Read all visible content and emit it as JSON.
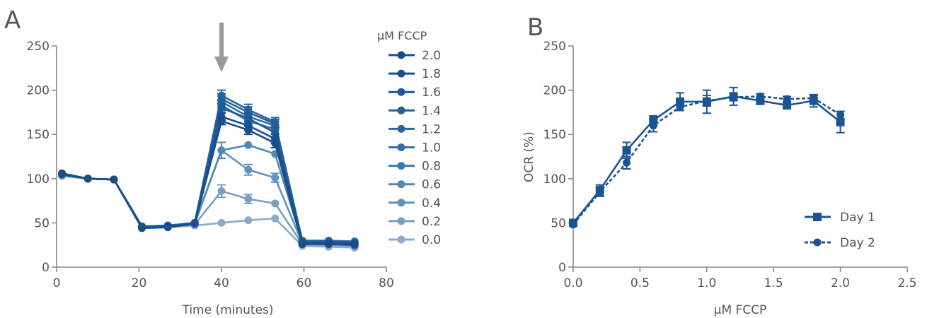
{
  "chart_data": [
    {
      "panel": "A",
      "type": "line",
      "xlabel": "Time (minutes)",
      "ylabel": "",
      "xlim": [
        0,
        80
      ],
      "ylim": [
        0,
        250
      ],
      "xticks": [
        0,
        20,
        40,
        60,
        80
      ],
      "yticks": [
        0,
        50,
        100,
        150,
        200,
        250
      ],
      "grid": false,
      "legend": {
        "title": "μM FCCP",
        "placement": "top-right"
      },
      "annotation": {
        "type": "arrow",
        "x": 40,
        "meaning": "FCCP injection"
      },
      "x": [
        1.3,
        7.6,
        13.9,
        20.7,
        27.0,
        33.5,
        40.0,
        46.5,
        53.0,
        59.6,
        66.0,
        72.3
      ],
      "series": [
        {
          "name": "2.0",
          "color": "#1a4d8a",
          "values": [
            106,
            100,
            99,
            44,
            45,
            49,
            165,
            155,
            140,
            26,
            26,
            25
          ],
          "errors": [
            0,
            0,
            0,
            0,
            0,
            0,
            4,
            5,
            5,
            0,
            0,
            0
          ]
        },
        {
          "name": "1.8",
          "color": "#1b5090",
          "values": [
            105,
            100,
            99,
            45,
            46,
            49,
            170,
            160,
            145,
            27,
            27,
            26
          ],
          "errors": [
            0,
            0,
            0,
            0,
            0,
            0,
            4,
            5,
            5,
            0,
            0,
            0
          ]
        },
        {
          "name": "1.6",
          "color": "#1e5896",
          "values": [
            105,
            100,
            99,
            45,
            46,
            50,
            180,
            168,
            152,
            28,
            28,
            27
          ],
          "errors": [
            0,
            0,
            0,
            0,
            0,
            0,
            5,
            6,
            6,
            0,
            0,
            0
          ]
        },
        {
          "name": "1.4",
          "color": "#24609c",
          "values": [
            105,
            100,
            99,
            46,
            47,
            50,
            190,
            175,
            162,
            29,
            29,
            28
          ],
          "errors": [
            0,
            0,
            0,
            0,
            0,
            0,
            6,
            6,
            5,
            0,
            0,
            0
          ]
        },
        {
          "name": "1.2",
          "color": "#2a67a2",
          "values": [
            105,
            100,
            99,
            46,
            47,
            50,
            194,
            178,
            164,
            30,
            30,
            29
          ],
          "errors": [
            0,
            0,
            0,
            0,
            0,
            0,
            6,
            6,
            5,
            0,
            0,
            0
          ]
        },
        {
          "name": "1.0",
          "color": "#3370a8",
          "values": [
            105,
            100,
            99,
            46,
            47,
            50,
            187,
            170,
            160,
            30,
            29,
            28
          ],
          "errors": [
            0,
            0,
            0,
            0,
            0,
            0,
            6,
            6,
            5,
            0,
            0,
            0
          ]
        },
        {
          "name": "0.8",
          "color": "#3e79ae",
          "values": [
            105,
            100,
            99,
            46,
            47,
            50,
            183,
            165,
            156,
            29,
            28,
            27
          ],
          "errors": [
            0,
            0,
            0,
            0,
            0,
            0,
            6,
            5,
            5,
            0,
            0,
            0
          ]
        },
        {
          "name": "0.6",
          "color": "#5088b6",
          "values": [
            104,
            100,
            99,
            46,
            47,
            50,
            132,
            138,
            128,
            28,
            27,
            26
          ],
          "errors": [
            0,
            0,
            0,
            0,
            0,
            0,
            9,
            0,
            0,
            0,
            0,
            0
          ]
        },
        {
          "name": "0.4",
          "color": "#6393bc",
          "values": [
            104,
            100,
            99,
            46,
            46,
            49,
            132,
            110,
            101,
            27,
            26,
            25
          ],
          "errors": [
            0,
            0,
            0,
            0,
            0,
            0,
            0,
            6,
            5,
            0,
            0,
            0
          ]
        },
        {
          "name": "0.2",
          "color": "#7a9fc4",
          "values": [
            104,
            100,
            99,
            45,
            46,
            48,
            86,
            77,
            72,
            26,
            25,
            24
          ],
          "errors": [
            0,
            0,
            0,
            0,
            0,
            0,
            7,
            5,
            0,
            0,
            0,
            0
          ]
        },
        {
          "name": "0.0",
          "color": "#8caacb",
          "values": [
            103,
            100,
            99,
            45,
            45,
            47,
            50,
            53,
            55,
            24,
            23,
            22
          ],
          "errors": [
            0,
            0,
            0,
            0,
            0,
            0,
            0,
            0,
            0,
            0,
            0,
            0
          ]
        }
      ]
    },
    {
      "panel": "B",
      "type": "line",
      "xlabel": "μM FCCP",
      "ylabel": "OCR (%)",
      "xlim": [
        0,
        2.5
      ],
      "ylim": [
        0,
        250
      ],
      "xticks": [
        "0.0",
        "0.5",
        "1.0",
        "1.5",
        "2.0",
        "2.5"
      ],
      "yticks": [
        0,
        50,
        100,
        150,
        200,
        250
      ],
      "grid": false,
      "legend": {
        "placement": "bottom-right"
      },
      "x": [
        0.0,
        0.2,
        0.4,
        0.6,
        0.8,
        1.0,
        1.2,
        1.4,
        1.6,
        1.8,
        2.0
      ],
      "series": [
        {
          "name": "Day 1",
          "marker": "square",
          "line": "solid",
          "color": "#1b5591",
          "values": [
            50,
            87,
            132,
            166,
            187,
            187,
            193,
            188,
            183,
            188,
            164
          ],
          "errors": [
            2,
            6,
            9,
            5,
            10,
            13,
            10,
            4,
            4,
            7,
            12
          ]
        },
        {
          "name": "Day 2",
          "marker": "circle",
          "line": "dashed",
          "color": "#1b5591",
          "values": [
            48,
            85,
            118,
            160,
            181,
            188,
            192,
            193,
            190,
            191,
            172
          ],
          "errors": [
            2,
            5,
            7,
            7,
            4,
            6,
            4,
            3,
            3,
            3,
            4
          ]
        }
      ]
    }
  ],
  "colors": {
    "axis": "#8a8a8a",
    "text": "#555555",
    "arrow": "#9a9a9a"
  }
}
